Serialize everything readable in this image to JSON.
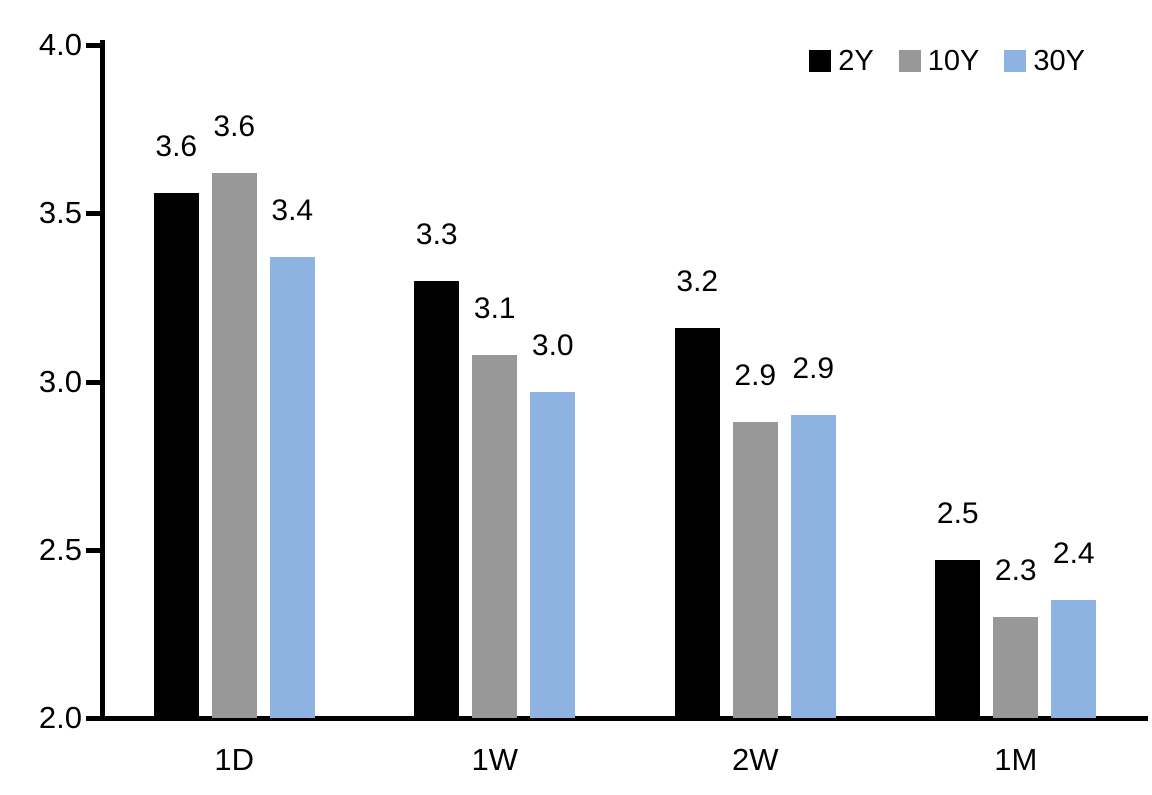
{
  "chart_data": {
    "type": "bar",
    "title": "",
    "categories": [
      "1D",
      "1W",
      "2W",
      "1M"
    ],
    "series": [
      {
        "name": "2Y",
        "color": "#000000",
        "values": [
          3.56,
          3.3,
          3.16,
          2.47
        ],
        "labels": [
          "3.6",
          "3.3",
          "3.2",
          "2.5"
        ]
      },
      {
        "name": "10Y",
        "color": "#989898",
        "values": [
          3.62,
          3.08,
          2.88,
          2.3
        ],
        "labels": [
          "3.6",
          "3.1",
          "2.9",
          "2.3"
        ]
      },
      {
        "name": "30Y",
        "color": "#8EB3E3",
        "values": [
          3.37,
          2.97,
          2.9,
          2.35
        ],
        "labels": [
          "3.4",
          "3.0",
          "2.9",
          "2.4"
        ]
      }
    ],
    "y_axis": {
      "min": 2.0,
      "max": 4.0,
      "tick_step": 0.5,
      "tick_labels": [
        "4.0",
        "3.5",
        "3.0",
        "2.5",
        "2.0"
      ]
    },
    "x_axis": {
      "tick_labels": [
        "1D",
        "1W",
        "2W",
        "1M"
      ]
    },
    "legend": {
      "position": "top-right",
      "entries": [
        "2Y",
        "10Y",
        "30Y"
      ]
    },
    "grid": false,
    "data_labels": true,
    "axis_color": "#000000",
    "background": "#FFFFFF"
  }
}
